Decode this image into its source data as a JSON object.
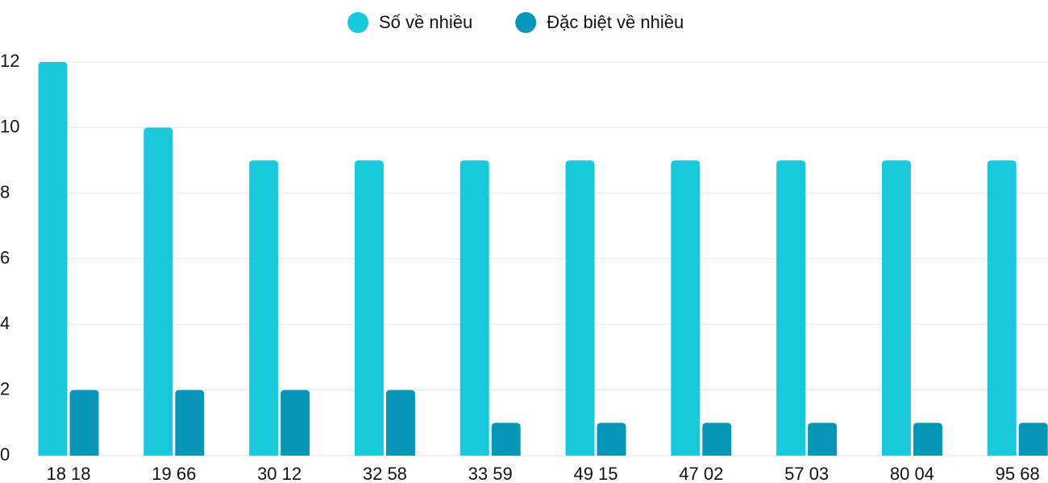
{
  "chart_data": {
    "type": "bar",
    "categories": [
      "18 18",
      "19 66",
      "30 12",
      "32 58",
      "33 59",
      "49 15",
      "47 02",
      "57 03",
      "80 04",
      "95 68"
    ],
    "series": [
      {
        "name": "Số về nhiều",
        "color": "#1ac8db",
        "values": [
          12,
          10,
          9,
          9,
          9,
          9,
          9,
          9,
          9,
          9
        ]
      },
      {
        "name": "Đặc biệt về nhiều",
        "color": "#0795b8",
        "values": [
          2,
          2,
          2,
          2,
          1,
          1,
          1,
          1,
          1,
          1
        ]
      }
    ],
    "ylim": [
      0,
      12
    ],
    "yticks": [
      0,
      2,
      4,
      6,
      8,
      10,
      12
    ],
    "grid": true,
    "legend": "top"
  }
}
